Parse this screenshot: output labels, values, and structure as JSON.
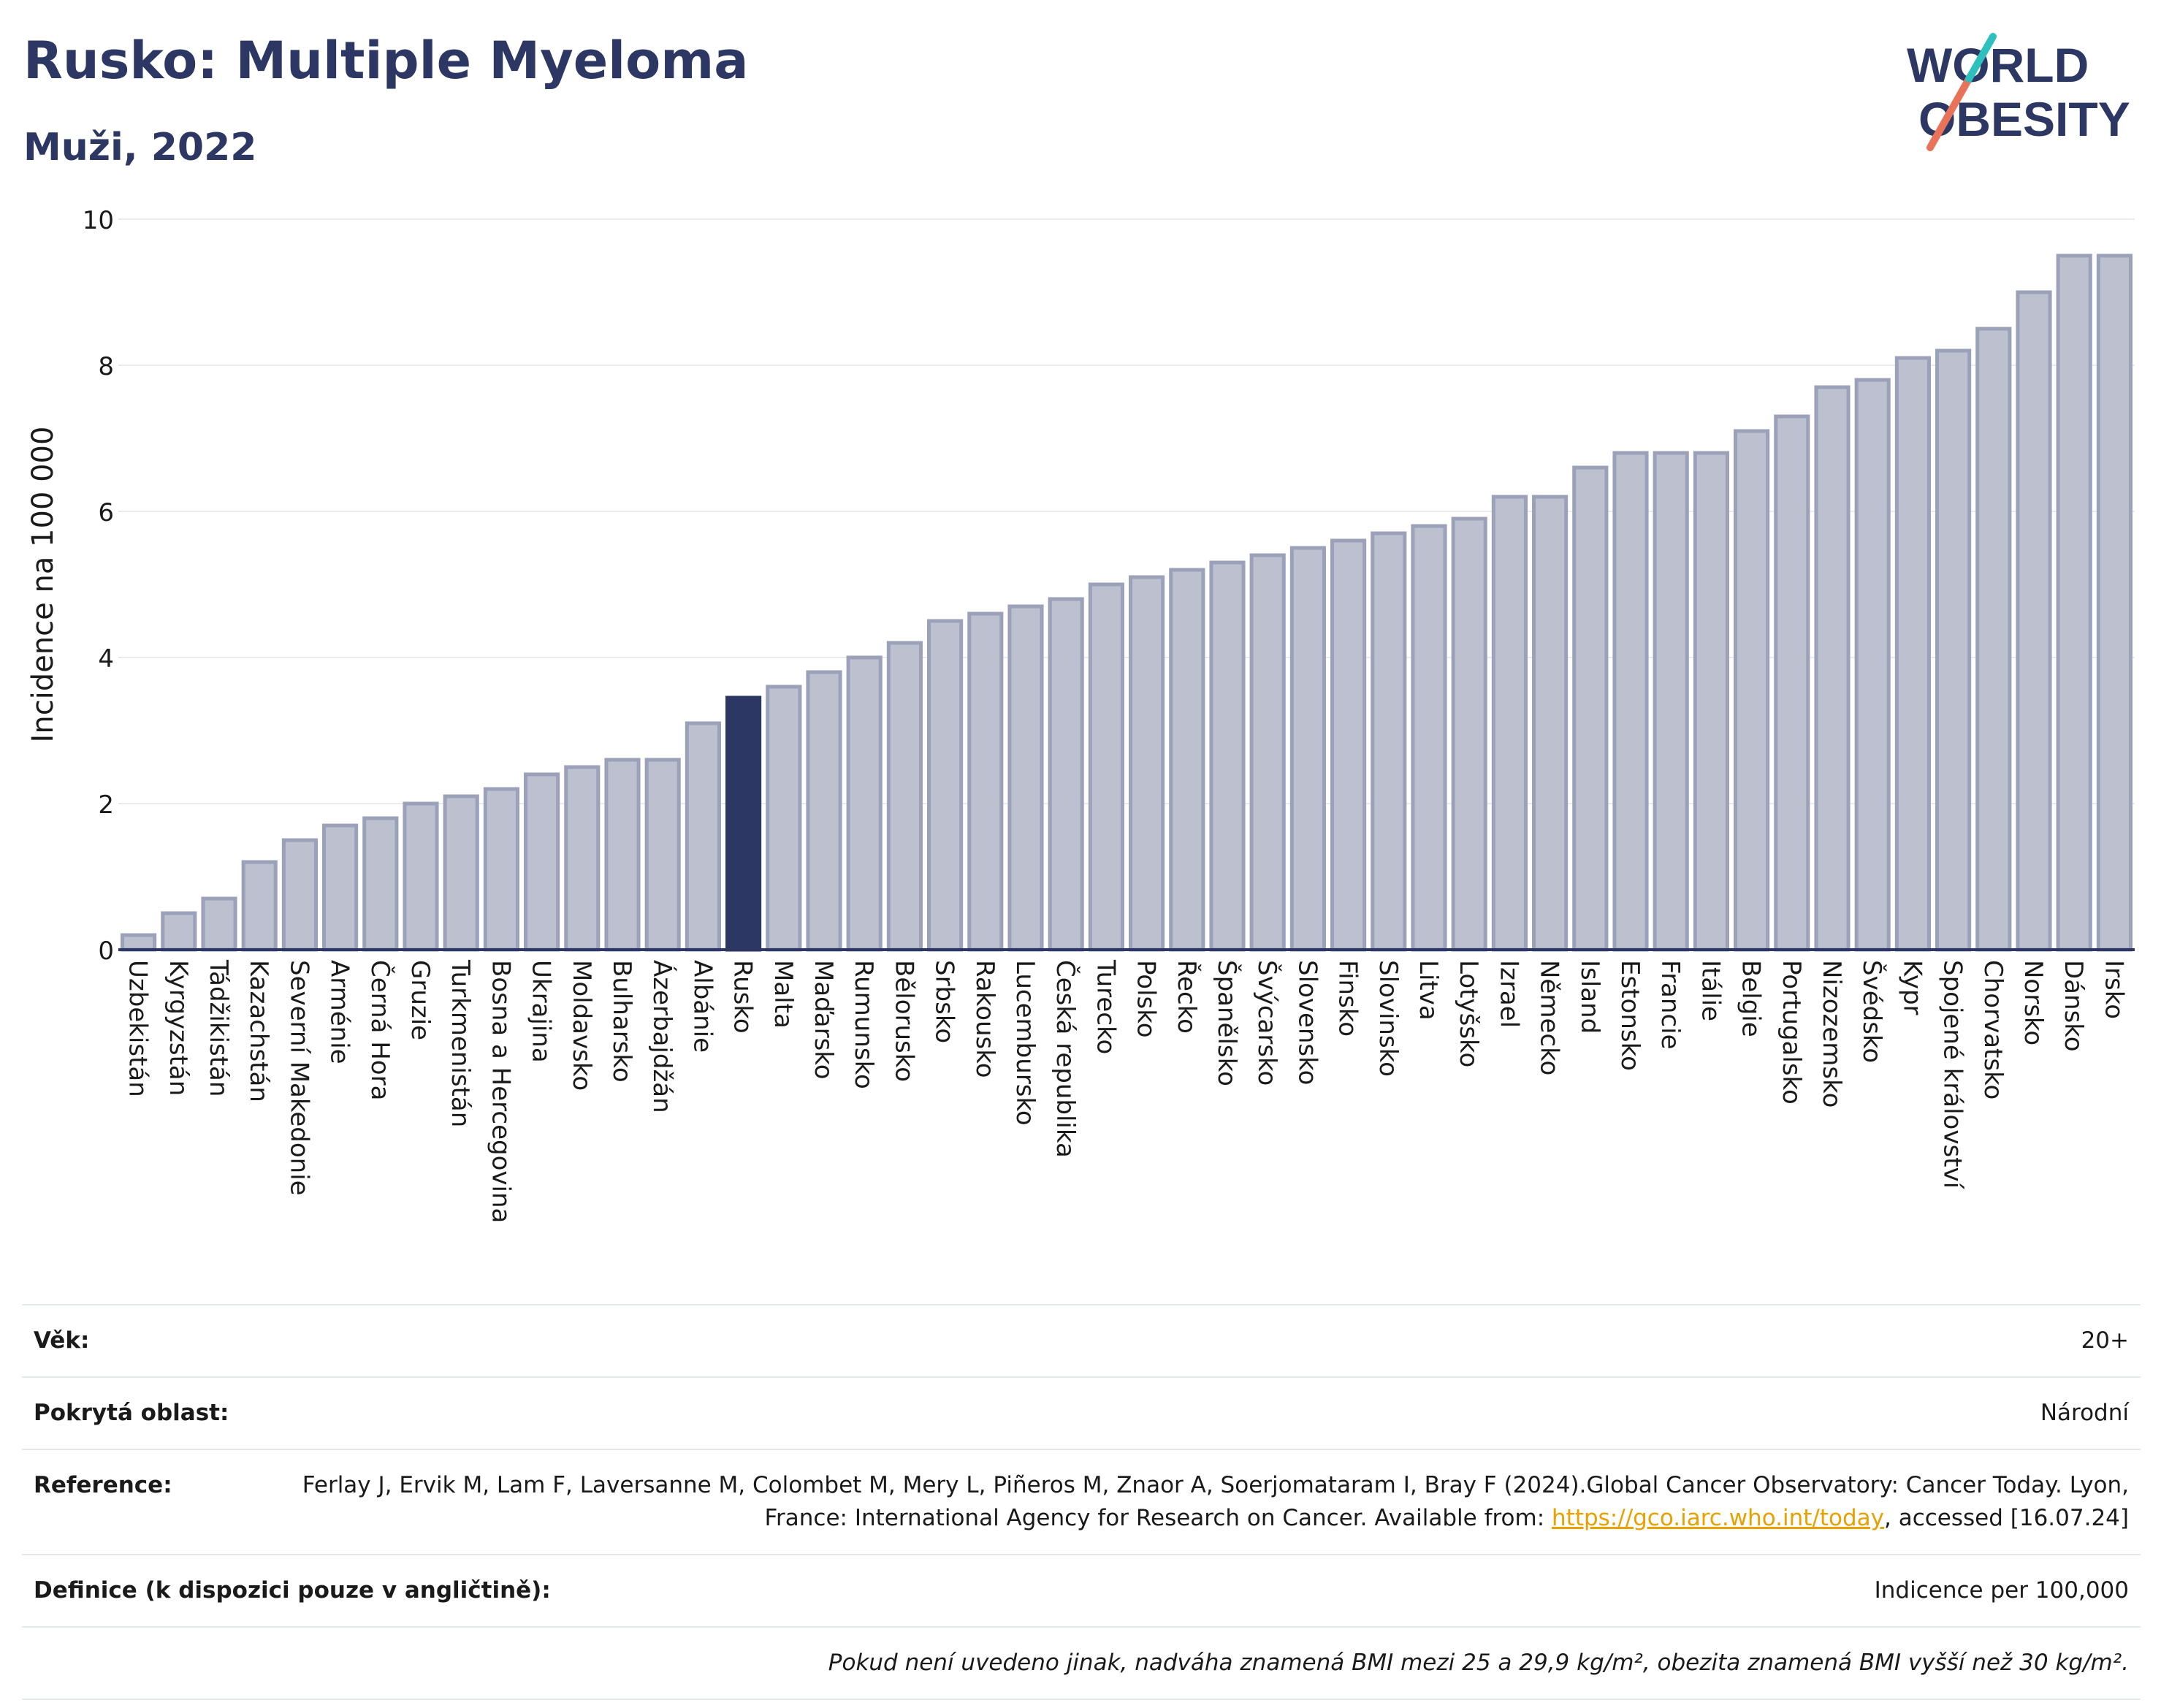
{
  "header": {
    "title": "Rusko: Multiple Myeloma",
    "subtitle": "Muži, 2022"
  },
  "logo": {
    "line1": "WORLD",
    "line2": "OBESITY",
    "stroke_colors": [
      "#e8735a",
      "#2ebfbf"
    ]
  },
  "colors": {
    "bar": "#bcc0cf",
    "bar_stroke": "#9ba1b8",
    "highlight": "#2c3763",
    "axis": "#2c3763",
    "grid": "#e9ebf1"
  },
  "chart_data": {
    "type": "bar",
    "ylabel": "Incidence na 100 000",
    "ylim": [
      0,
      10
    ],
    "yticks": [
      0,
      2,
      4,
      6,
      8,
      10
    ],
    "highlight": "Rusko",
    "categories": [
      "Uzbekistán",
      "Kyrgyzstán",
      "Tádžikistán",
      "Kazachstán",
      "Severní Makedonie",
      "Arménie",
      "Černá Hora",
      "Gruzie",
      "Turkmenistán",
      "Bosna a Hercegovina",
      "Ukrajina",
      "Moldavsko",
      "Bulharsko",
      "Ázerbajdžán",
      "Albánie",
      "Rusko",
      "Malta",
      "Maďarsko",
      "Rumunsko",
      "Bělorusko",
      "Srbsko",
      "Rakousko",
      "Lucembursko",
      "Česká republika",
      "Turecko",
      "Polsko",
      "Řecko",
      "Španělsko",
      "Švýcarsko",
      "Slovensko",
      "Finsko",
      "Slovinsko",
      "Litva",
      "Lotyšsko",
      "Izrael",
      "Německo",
      "Island",
      "Estonsko",
      "Francie",
      "Itálie",
      "Belgie",
      "Portugalsko",
      "Nizozemsko",
      "Švédsko",
      "Kypr",
      "Spojené království",
      "Chorvatsko",
      "Norsko",
      "Dánsko",
      "Irsko"
    ],
    "values": [
      0.2,
      0.5,
      0.7,
      1.2,
      1.5,
      1.7,
      1.8,
      2.0,
      2.1,
      2.2,
      2.4,
      2.5,
      2.6,
      2.6,
      3.1,
      3.45,
      3.6,
      3.8,
      4.0,
      4.2,
      4.5,
      4.6,
      4.7,
      4.8,
      5.0,
      5.1,
      5.2,
      5.3,
      5.4,
      5.5,
      5.6,
      5.7,
      5.8,
      5.9,
      6.2,
      6.2,
      6.6,
      6.8,
      6.8,
      6.8,
      7.1,
      7.3,
      7.7,
      7.8,
      8.1,
      8.2,
      8.5,
      9.0,
      9.5,
      9.5
    ]
  },
  "footer": {
    "age_label": "Věk:",
    "age_value": "20+",
    "coverage_label": "Pokrytá oblast:",
    "coverage_value": "Národní",
    "reference_label": "Reference:",
    "reference_text": "Ferlay J, Ervik M, Lam F, Laversanne M, Colombet M, Mery L, Piñeros M, Znaor A, Soerjomataram I, Bray F (2024).Global Cancer Observatory: Cancer Today. Lyon, France: International Agency for Research on Cancer. Available from:",
    "reference_link": "https://gco.iarc.who.int/today",
    "reference_tail": ", accessed [16.07.24]",
    "definition_label": "Definice (k dispozici pouze v angličtině):",
    "definition_value": "Indicence per 100,000",
    "note": "Pokud není uvedeno jinak, nadváha znamená BMI mezi 25 a 29,9 kg/m², obezita znamená BMI vyšší než 30 kg/m²."
  }
}
